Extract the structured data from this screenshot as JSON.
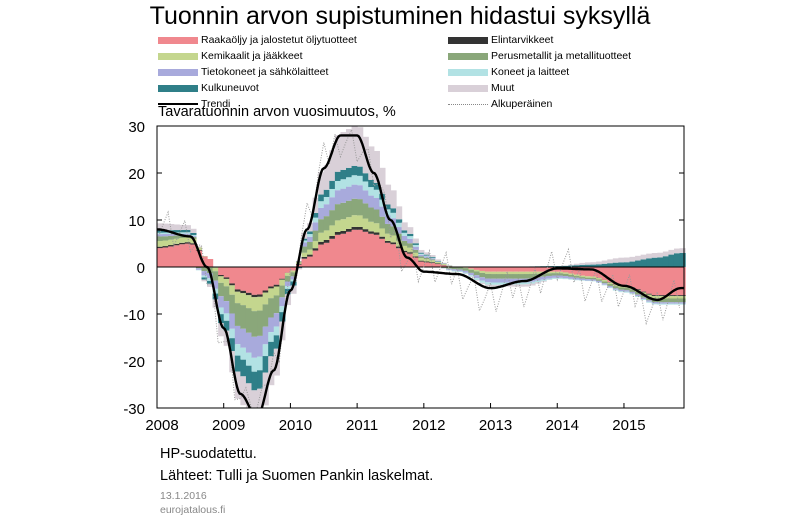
{
  "chart_data": {
    "type": "area",
    "title": "Tuonnin arvon supistuminen hidastui syksyllä",
    "subtitle": "Tavaratuonnin arvon vuosimuutos, %",
    "ylim": [
      -30,
      30
    ],
    "yticks": [
      30,
      20,
      10,
      0,
      -10,
      -20,
      -30
    ],
    "xlim": [
      2008.0,
      2015.9
    ],
    "xticks": [
      "2008",
      "2009",
      "2010",
      "2011",
      "2012",
      "2013",
      "2014",
      "2015"
    ],
    "legend": [
      {
        "label": "Raakaöljy ja jalostetut öljytuotteet",
        "color": "#f0888e",
        "kind": "area"
      },
      {
        "label": "Elintarvikkeet",
        "color": "#333333",
        "kind": "area"
      },
      {
        "label": "Kemikaalit ja jääkkeet",
        "color": "#c4d68e",
        "kind": "area"
      },
      {
        "label": "Perusmetallit ja metallituotteet",
        "color": "#8aa77a",
        "kind": "area"
      },
      {
        "label": "Tietokoneet ja sähkölaitteet",
        "color": "#a8aadc",
        "kind": "area"
      },
      {
        "label": "Koneet ja laitteet",
        "color": "#b2e2e4",
        "kind": "area"
      },
      {
        "label": "Kulkuneuvot",
        "color": "#2f7f88",
        "kind": "area"
      },
      {
        "label": "Muut",
        "color": "#d9d0d8",
        "kind": "area"
      },
      {
        "label": "Trendi",
        "color": "#000000",
        "kind": "line"
      },
      {
        "label": "Alkuperäinen",
        "color": "#888888",
        "kind": "dotted"
      }
    ],
    "x": [
      2008.0,
      2008.5,
      2008.75,
      2009.0,
      2009.25,
      2009.5,
      2009.75,
      2010.0,
      2010.25,
      2010.5,
      2010.75,
      2011.0,
      2011.25,
      2011.5,
      2011.75,
      2012.0,
      2012.5,
      2013.0,
      2013.5,
      2014.0,
      2014.5,
      2015.0,
      2015.5,
      2015.85
    ],
    "series": [
      {
        "name": "Raakaöljy ja jalostetut öljytuotteet",
        "values": [
          4,
          5,
          2,
          -2,
          -5,
          -6,
          -4,
          -1,
          2,
          5,
          7,
          8,
          7,
          5,
          3,
          1,
          0,
          -1,
          -1,
          -1,
          -2,
          -4,
          -6,
          -6
        ]
      },
      {
        "name": "Elintarvikkeet",
        "values": [
          0.3,
          0.3,
          0,
          -0.3,
          -0.5,
          -0.5,
          -0.4,
          0,
          0.4,
          0.6,
          0.6,
          0.6,
          0.5,
          0.4,
          0.3,
          0.2,
          0,
          0,
          0.1,
          0,
          0,
          -0.1,
          -0.2,
          -0.2
        ]
      },
      {
        "name": "Kemikaalit ja jääkkeet",
        "values": [
          1.2,
          1,
          0,
          -1.5,
          -2.5,
          -3,
          -2,
          -0.5,
          1,
          2,
          2.5,
          2.5,
          2,
          1.5,
          1,
          0.5,
          0,
          -0.5,
          -0.5,
          -0.3,
          -0.3,
          -0.3,
          -0.5,
          -0.5
        ]
      },
      {
        "name": "Perusmetallit ja metallituotteet",
        "values": [
          1,
          0.5,
          -1,
          -3,
          -5,
          -5.5,
          -4,
          -1,
          1.5,
          3,
          3.5,
          3.5,
          3,
          2,
          1,
          0.3,
          -0.5,
          -1,
          -1,
          -0.5,
          -0.3,
          -0.5,
          -0.8,
          -0.8
        ]
      },
      {
        "name": "Tietokoneet ja sähkölaitteet",
        "values": [
          0.5,
          0.3,
          -1,
          -2.5,
          -4,
          -4.5,
          -3,
          -0.8,
          1,
          2.5,
          3,
          3,
          2.5,
          1.8,
          1,
          0.3,
          -0.3,
          -0.8,
          -0.8,
          -0.5,
          -0.3,
          -0.3,
          -0.3,
          -0.3
        ]
      },
      {
        "name": "Koneet ja laitteet",
        "values": [
          0.3,
          0.3,
          -0.5,
          -1.5,
          -2.5,
          -3,
          -2,
          -0.5,
          0.5,
          1.5,
          2,
          2,
          1.8,
          1.2,
          0.6,
          0.2,
          -0.2,
          -0.5,
          -0.4,
          -0.2,
          -0.1,
          -0.2,
          -0.2,
          -0.2
        ]
      },
      {
        "name": "Kulkuneuvot",
        "values": [
          0.5,
          0.5,
          -0.5,
          -2,
          -3.5,
          -4,
          -3,
          -1,
          0.5,
          1.5,
          2,
          2,
          1.5,
          1,
          0.5,
          0.2,
          0,
          0,
          0,
          0.2,
          0.5,
          1,
          2,
          3
        ]
      },
      {
        "name": "Muut",
        "values": [
          1.5,
          1,
          -0.5,
          -3,
          -6,
          -8,
          -6,
          -2,
          1.5,
          5,
          8,
          8.5,
          7,
          4,
          1.5,
          0.5,
          0,
          -0.3,
          -0.5,
          0,
          0.5,
          1,
          1,
          1
        ]
      },
      {
        "name": "Trendi",
        "values": [
          8,
          6.5,
          0,
          -13,
          -27,
          -32,
          -22,
          -5,
          8,
          21,
          28,
          28,
          20,
          10,
          2,
          -1,
          -1.5,
          -4.5,
          -3,
          -0.3,
          -0.5,
          -4,
          -7,
          -4.5
        ]
      },
      {
        "name": "Alkuperäinen",
        "values": [
          10,
          6,
          -2,
          -15,
          -28,
          -33,
          -20,
          -3,
          10,
          22,
          28,
          26,
          20,
          8,
          2,
          0,
          -2,
          -7,
          -4,
          0,
          -3,
          -6,
          -8,
          -6
        ]
      }
    ]
  },
  "footer": {
    "note": "HP-suodatettu.",
    "source": "Lähteet: Tulli ja Suomen Pankin laskelmat.",
    "date": "13.1.2016",
    "site": "eurojatalous.fi"
  }
}
